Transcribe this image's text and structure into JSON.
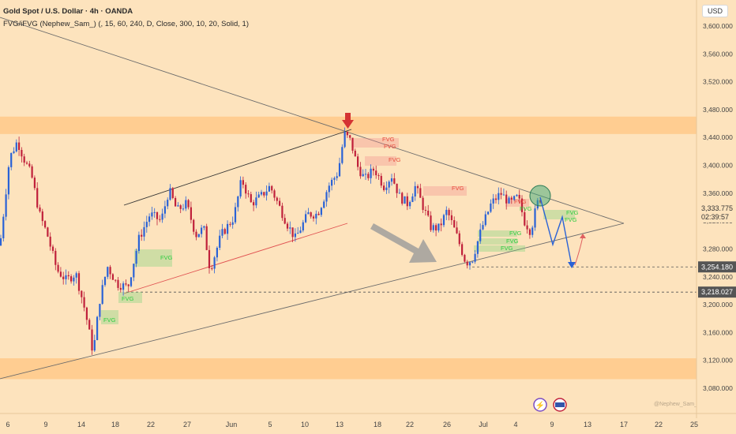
{
  "header": {
    "symbol": "Gold Spot / U.S. Dollar · 4h · OANDA",
    "indicator": "FVG/iFVG (Nephew_Sam_) (, 15, 60, 240, D, Close, 300, 10, 20, Solid, 1)"
  },
  "currency_label": "USD",
  "watermark": "@Nephew_Sam_",
  "price_labels": {
    "current": "3,333.775",
    "countdown": "02:39:57",
    "level_1": "3,254.180",
    "level_2": "3,218.027"
  },
  "colors": {
    "background": "#fde3bd",
    "zone": "#ffc98a",
    "up_candle": "#2a62d6",
    "down_candle": "#c0213b",
    "fvg_bull_text": "#2ecc40",
    "fvg_bear_text": "#e74c3c"
  },
  "chart_data": {
    "type": "candlestick",
    "title": "Gold Spot / U.S. Dollar · 4h · OANDA",
    "xlabel": "",
    "ylabel": "",
    "ylim": [
      3060,
      3620
    ],
    "x_ticks": [
      "6",
      "9",
      "14",
      "18",
      "22",
      "27",
      "Jun",
      "5",
      "10",
      "13",
      "18",
      "22",
      "26",
      "Jul",
      "4",
      "9",
      "13",
      "17",
      "22",
      "25"
    ],
    "y_ticks": [
      "3,080.000",
      "3,120.000",
      "3,160.000",
      "3,200.000",
      "3,240.000",
      "3,280.000",
      "3,320.000",
      "3,360.000",
      "3,400.000",
      "3,440.000",
      "3,480.000",
      "3,520.000",
      "3,560.000",
      "3,600.000"
    ],
    "anchors": [
      [
        0,
        3285
      ],
      [
        12,
        3410
      ],
      [
        22,
        3435
      ],
      [
        30,
        3410
      ],
      [
        40,
        3385
      ],
      [
        50,
        3330
      ],
      [
        60,
        3300
      ],
      [
        72,
        3250
      ],
      [
        84,
        3235
      ],
      [
        96,
        3245
      ],
      [
        108,
        3190
      ],
      [
        118,
        3130
      ],
      [
        126,
        3205
      ],
      [
        136,
        3255
      ],
      [
        148,
        3230
      ],
      [
        162,
        3225
      ],
      [
        176,
        3295
      ],
      [
        190,
        3330
      ],
      [
        204,
        3320
      ],
      [
        214,
        3365
      ],
      [
        224,
        3335
      ],
      [
        236,
        3345
      ],
      [
        248,
        3300
      ],
      [
        258,
        3310
      ],
      [
        266,
        3250
      ],
      [
        280,
        3300
      ],
      [
        296,
        3325
      ],
      [
        306,
        3380
      ],
      [
        318,
        3345
      ],
      [
        330,
        3355
      ],
      [
        342,
        3370
      ],
      [
        354,
        3340
      ],
      [
        364,
        3315
      ],
      [
        374,
        3295
      ],
      [
        390,
        3330
      ],
      [
        402,
        3330
      ],
      [
        416,
        3370
      ],
      [
        428,
        3390
      ],
      [
        436,
        3445
      ],
      [
        444,
        3435
      ],
      [
        452,
        3400
      ],
      [
        462,
        3380
      ],
      [
        474,
        3395
      ],
      [
        486,
        3370
      ],
      [
        496,
        3385
      ],
      [
        506,
        3355
      ],
      [
        516,
        3345
      ],
      [
        526,
        3370
      ],
      [
        536,
        3340
      ],
      [
        546,
        3310
      ],
      [
        556,
        3310
      ],
      [
        566,
        3335
      ],
      [
        578,
        3300
      ],
      [
        590,
        3260
      ],
      [
        598,
        3265
      ],
      [
        610,
        3310
      ],
      [
        622,
        3345
      ],
      [
        634,
        3360
      ],
      [
        646,
        3345
      ],
      [
        656,
        3355
      ],
      [
        664,
        3320
      ],
      [
        672,
        3305
      ],
      [
        680,
        3345
      ],
      [
        686,
        3355
      ]
    ],
    "support_resistance_zones": [
      [
        3445,
        3470
      ],
      [
        3093,
        3123
      ]
    ],
    "horizontal_levels": [
      3254.18,
      3218.027
    ],
    "current_price": 3333.775,
    "annotations": [
      "FVG",
      "FVG",
      "FVG",
      "FVG",
      "FVG",
      "FVG",
      "FVG",
      "FVG",
      "FVG",
      "FVG",
      "FVG",
      "FVG",
      "FVG",
      "FVG"
    ]
  }
}
